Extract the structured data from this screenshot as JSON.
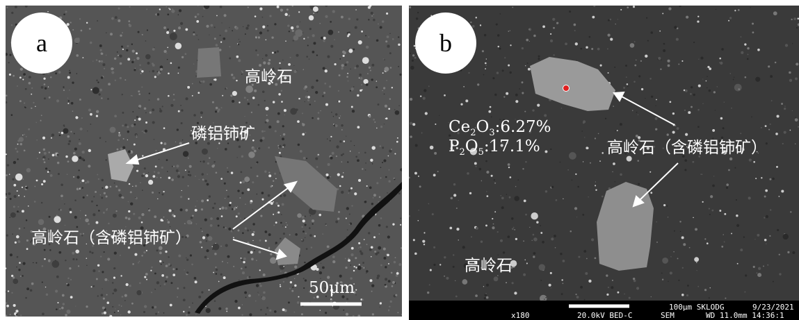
{
  "panel_a": {
    "letter": "a",
    "kaolinite": "高岭石",
    "mineral": "磷铝铈矿",
    "mixed": "高岭石（含磷铝铈矿）",
    "scale": "50μm"
  },
  "panel_b": {
    "letter": "b",
    "formula_1": [
      "Ce",
      "2",
      "O",
      "3",
      ":6.27%"
    ],
    "formula_2": [
      "P",
      "2",
      "O",
      "5",
      ":17.1%"
    ],
    "mixed": "高岭石（含磷铝铈矿）",
    "kaolinite": "高岭石",
    "info_top": [
      "100μm SKLODG",
      "9/23/2021"
    ],
    "info_bottom": [
      "x180",
      "20.0kV BED-C",
      "SEM",
      "WD 11.0mm 14:36:1"
    ]
  }
}
